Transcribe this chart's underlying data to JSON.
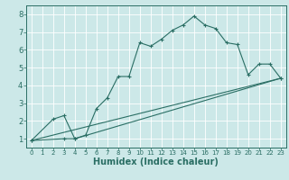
{
  "background_color": "#cce8e8",
  "grid_color": "#ffffff",
  "line_color": "#2a6e64",
  "xlabel": "Humidex (Indice chaleur)",
  "xlim": [
    -0.5,
    23.5
  ],
  "ylim": [
    0.5,
    8.5
  ],
  "xticks": [
    0,
    1,
    2,
    3,
    4,
    5,
    6,
    7,
    8,
    9,
    10,
    11,
    12,
    13,
    14,
    15,
    16,
    17,
    18,
    19,
    20,
    21,
    22,
    23
  ],
  "yticks": [
    1,
    2,
    3,
    4,
    5,
    6,
    7,
    8
  ],
  "line1_x": [
    0,
    2,
    3,
    4,
    5,
    6,
    7,
    8,
    9,
    10,
    11,
    12,
    13,
    14,
    15,
    16,
    17,
    18,
    19,
    20,
    21,
    22,
    23
  ],
  "line1_y": [
    0.9,
    2.1,
    2.3,
    1.0,
    1.2,
    2.7,
    3.3,
    4.5,
    4.5,
    6.4,
    6.2,
    6.6,
    7.1,
    7.4,
    7.9,
    7.4,
    7.2,
    6.4,
    6.3,
    4.6,
    5.2,
    5.2,
    4.4
  ],
  "line2_x": [
    0,
    3,
    4,
    23
  ],
  "line2_y": [
    0.9,
    1.0,
    1.0,
    4.4
  ],
  "line3_x": [
    0,
    23
  ],
  "line3_y": [
    0.9,
    4.4
  ],
  "xlabel_fontsize": 7,
  "tick_fontsize_x": 5,
  "tick_fontsize_y": 6,
  "linewidth": 0.8,
  "markersize": 2.5
}
